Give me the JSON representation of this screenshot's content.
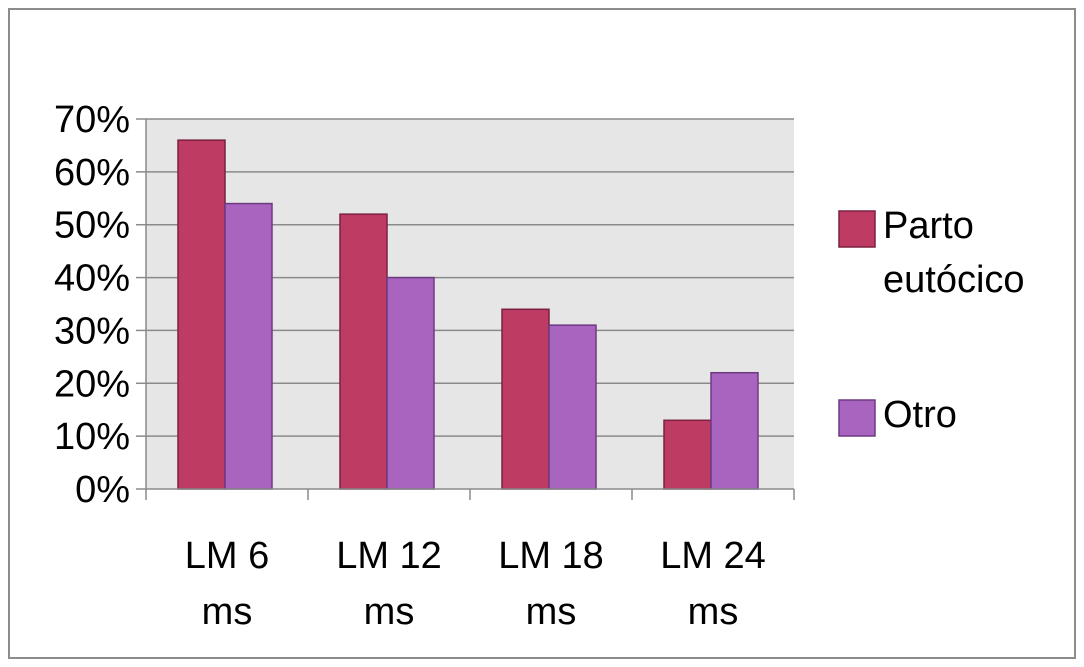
{
  "chart_data": {
    "type": "bar",
    "categories": [
      [
        "LM 6",
        "ms"
      ],
      [
        "LM 12",
        "ms"
      ],
      [
        "LM 18",
        "ms"
      ],
      [
        "LM 24",
        "ms"
      ]
    ],
    "series": [
      {
        "name": "Parto eutócico",
        "legend_lines": [
          "Parto",
          "eutócico"
        ],
        "color": "#be3c64",
        "values": [
          0.66,
          0.52,
          0.34,
          0.13
        ]
      },
      {
        "name": "Otro",
        "legend_lines": [
          "Otro"
        ],
        "color": "#a864bf",
        "values": [
          0.54,
          0.4,
          0.31,
          0.22
        ]
      }
    ],
    "y_ticks": [
      "0%",
      "10%",
      "20%",
      "30%",
      "40%",
      "50%",
      "60%",
      "70%"
    ],
    "ylim": [
      0,
      0.7
    ],
    "grid": true,
    "plot_background": "#e6e6e6",
    "legend_position": "right"
  }
}
